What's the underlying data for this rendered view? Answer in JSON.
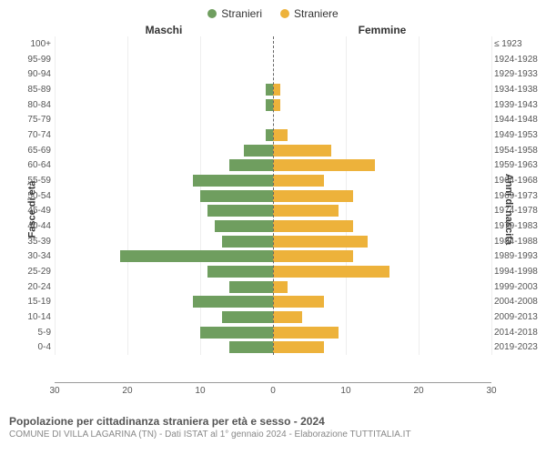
{
  "legend": {
    "male": {
      "label": "Stranieri",
      "color": "#6f9e5f"
    },
    "female": {
      "label": "Straniere",
      "color": "#edb23b"
    }
  },
  "headers": {
    "left": "Maschi",
    "right": "Femmine"
  },
  "axis": {
    "left_title": "Fasce di età",
    "right_title": "Anni di nascita",
    "xmax": 30,
    "xticks": [
      30,
      20,
      10,
      0,
      10,
      20,
      30
    ]
  },
  "colors": {
    "male_bar": "#6f9e5f",
    "female_bar": "#edb23b",
    "grid": "#eeeeee",
    "axis": "#999999",
    "center_dash": "#666666",
    "bg": "#ffffff"
  },
  "typography": {
    "base_font": "Arial",
    "legend_size": 12,
    "header_size": 12,
    "label_size": 10,
    "title_size": 12,
    "subtitle_size": 10
  },
  "chart": {
    "type": "population-pyramid",
    "bar_height_ratio": 0.78
  },
  "rows": [
    {
      "age": "100+",
      "year": "≤ 1923",
      "m": 0,
      "f": 0
    },
    {
      "age": "95-99",
      "year": "1924-1928",
      "m": 0,
      "f": 0
    },
    {
      "age": "90-94",
      "year": "1929-1933",
      "m": 0,
      "f": 0
    },
    {
      "age": "85-89",
      "year": "1934-1938",
      "m": 1,
      "f": 1
    },
    {
      "age": "80-84",
      "year": "1939-1943",
      "m": 1,
      "f": 1
    },
    {
      "age": "75-79",
      "year": "1944-1948",
      "m": 0,
      "f": 0
    },
    {
      "age": "70-74",
      "year": "1949-1953",
      "m": 1,
      "f": 2
    },
    {
      "age": "65-69",
      "year": "1954-1958",
      "m": 4,
      "f": 8
    },
    {
      "age": "60-64",
      "year": "1959-1963",
      "m": 6,
      "f": 14
    },
    {
      "age": "55-59",
      "year": "1964-1968",
      "m": 11,
      "f": 7
    },
    {
      "age": "50-54",
      "year": "1969-1973",
      "m": 10,
      "f": 11
    },
    {
      "age": "45-49",
      "year": "1974-1978",
      "m": 9,
      "f": 9
    },
    {
      "age": "40-44",
      "year": "1979-1983",
      "m": 8,
      "f": 11
    },
    {
      "age": "35-39",
      "year": "1984-1988",
      "m": 7,
      "f": 13
    },
    {
      "age": "30-34",
      "year": "1989-1993",
      "m": 21,
      "f": 11
    },
    {
      "age": "25-29",
      "year": "1994-1998",
      "m": 9,
      "f": 16
    },
    {
      "age": "20-24",
      "year": "1999-2003",
      "m": 6,
      "f": 2
    },
    {
      "age": "15-19",
      "year": "2004-2008",
      "m": 11,
      "f": 7
    },
    {
      "age": "10-14",
      "year": "2009-2013",
      "m": 7,
      "f": 4
    },
    {
      "age": "5-9",
      "year": "2014-2018",
      "m": 10,
      "f": 9
    },
    {
      "age": "0-4",
      "year": "2019-2023",
      "m": 6,
      "f": 7
    }
  ],
  "footer": {
    "title": "Popolazione per cittadinanza straniera per età e sesso - 2024",
    "subtitle": "COMUNE DI VILLA LAGARINA (TN) - Dati ISTAT al 1° gennaio 2024 - Elaborazione TUTTITALIA.IT"
  }
}
